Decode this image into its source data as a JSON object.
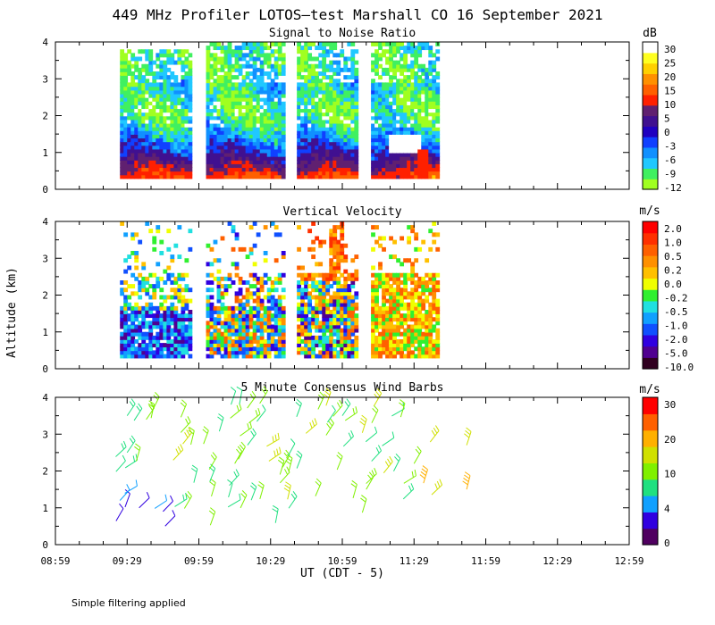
{
  "title": "449 MHz Profiler LOTOS—test Marshall CO 16 September 2021",
  "footer_note": "Simple filtering applied",
  "y_axis_label": "Altitude (km)",
  "x_axis_label": "UT  (CDT - 5)",
  "colors": {
    "snr": [
      "#a0ff20",
      "#40f060",
      "#20c8ff",
      "#1090ff",
      "#1040ff",
      "#2000c0",
      "#401090",
      "#602070",
      "#ff2000",
      "#ff6000",
      "#ff9000",
      "#ffd000",
      "#ffff20",
      "#ffffff"
    ],
    "vv": [
      "#300020",
      "#500090",
      "#3000e0",
      "#1050ff",
      "#10a0ff",
      "#20e0e0",
      "#30f030",
      "#f0ff00",
      "#ffc000",
      "#ff9000",
      "#ff6000",
      "#ff3000",
      "#ff0000"
    ],
    "wind": [
      "#500060",
      "#3000e0",
      "#10a0ff",
      "#20e080",
      "#80f000",
      "#d0e000",
      "#ffb000",
      "#ff6000",
      "#ff0000"
    ]
  },
  "chart_data": [
    {
      "type": "heatmap",
      "title": "Signal to Noise Ratio",
      "ylabel": "Altitude (km)",
      "xlabel": "UT  (CDT - 5)",
      "ylim": [
        0,
        4
      ],
      "yticks": [
        "0",
        "1",
        "2",
        "3",
        "4"
      ],
      "xlim_minutes": [
        0,
        240
      ],
      "xticks": [
        "08:59",
        "09:29",
        "09:59",
        "10:29",
        "10:59",
        "11:29",
        "11:59",
        "12:29",
        "12:59"
      ],
      "colorbar": {
        "unit": "dB",
        "labels": [
          "30",
          "25",
          "20",
          "15",
          "10",
          "5",
          "0",
          "-3",
          "-6",
          "-9",
          "-12"
        ]
      },
      "data_segments_minutes": [
        [
          27,
          56
        ],
        [
          63,
          96
        ],
        [
          101,
          126
        ],
        [
          132,
          160
        ]
      ],
      "profile_km_vs_dB": [
        [
          0.4,
          12
        ],
        [
          0.8,
          3
        ],
        [
          1.2,
          -3
        ],
        [
          1.6,
          -8
        ],
        [
          2.1,
          -11
        ],
        [
          2.7,
          -8
        ],
        [
          3.3,
          -10
        ],
        [
          3.9,
          -11
        ]
      ]
    },
    {
      "type": "heatmap",
      "title": "Vertical Velocity",
      "ylabel": "Altitude (km)",
      "xlabel": "UT  (CDT - 5)",
      "ylim": [
        0,
        4
      ],
      "yticks": [
        "0",
        "1",
        "2",
        "3",
        "4"
      ],
      "xlim_minutes": [
        0,
        240
      ],
      "xticks": [
        "08:59",
        "09:29",
        "09:59",
        "10:29",
        "10:59",
        "11:29",
        "11:59",
        "12:29",
        "12:59"
      ],
      "colorbar": {
        "unit": "m/s",
        "labels": [
          "2.0",
          "1.0",
          "0.5",
          "0.2",
          "0.0",
          "-0.2",
          "-0.5",
          "-1.0",
          "-2.0",
          "-5.0",
          "-10.0"
        ]
      },
      "data_segments_minutes": [
        [
          27,
          57
        ],
        [
          63,
          96
        ],
        [
          101,
          126
        ],
        [
          132,
          160
        ]
      ]
    },
    {
      "type": "scatter",
      "title": "5 Minute Consensus Wind Barbs",
      "ylabel": "Altitude (km)",
      "xlabel": "UT  (CDT - 5)",
      "ylim": [
        0,
        4
      ],
      "yticks": [
        "0",
        "1",
        "2",
        "3",
        "4"
      ],
      "xlim_minutes": [
        0,
        240
      ],
      "xticks": [
        "08:59",
        "09:29",
        "09:59",
        "10:29",
        "10:59",
        "11:29",
        "11:59",
        "12:29",
        "12:59"
      ],
      "colorbar": {
        "unit": "m/s",
        "labels": [
          "30",
          "20",
          "10",
          "4",
          "0"
        ]
      },
      "barb_samples": [
        {
          "t": 30,
          "km": 3.5,
          "speed": 8
        },
        {
          "t": 30,
          "km": 2.5,
          "speed": 8
        },
        {
          "t": 27,
          "km": 1.2,
          "speed": 4
        },
        {
          "t": 35,
          "km": 1.0,
          "speed": 2
        },
        {
          "t": 45,
          "km": 0.9,
          "speed": 3
        },
        {
          "t": 75,
          "km": 2.2,
          "speed": 10
        },
        {
          "t": 95,
          "km": 2.1,
          "speed": 10
        },
        {
          "t": 120,
          "km": 3.5,
          "speed": 8
        },
        {
          "t": 130,
          "km": 1.5,
          "speed": 10
        },
        {
          "t": 150,
          "km": 2.2,
          "speed": 10
        },
        {
          "t": 172,
          "km": 2.7,
          "speed": 16
        },
        {
          "t": 172,
          "km": 1.5,
          "speed": 18
        }
      ]
    }
  ]
}
